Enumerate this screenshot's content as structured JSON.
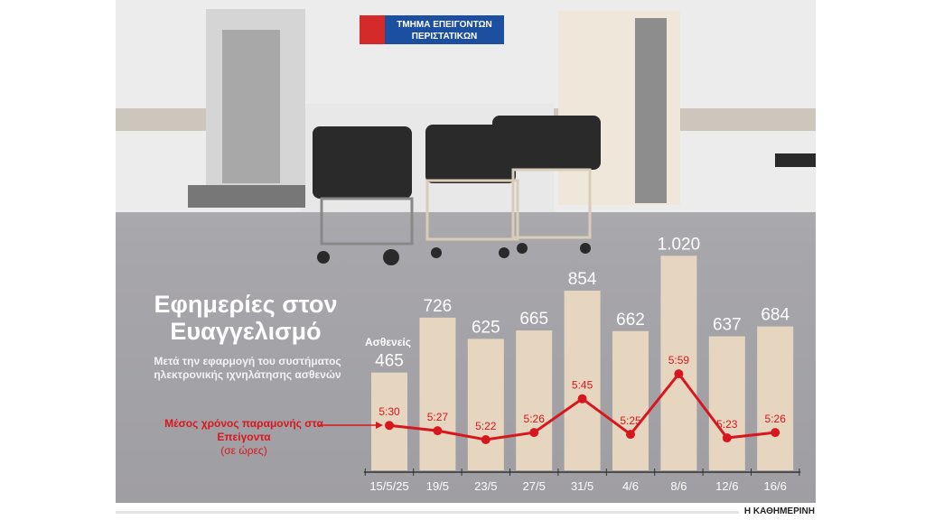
{
  "chart_data": {
    "type": "bar+line",
    "title": "Εφημερίες στον Ευαγγελισμό",
    "subtitle": "Μετά την εφαρμογή του συστήματος ηλεκτρονικής ιχνηλάτησης ασθενών",
    "categories": [
      "15/5/25",
      "19/5",
      "23/5",
      "27/5",
      "31/5",
      "4/6",
      "8/6",
      "12/6",
      "16/6"
    ],
    "bar_series": {
      "name": "Ασθενείς",
      "values": [
        465,
        726,
        625,
        665,
        854,
        662,
        1020,
        637,
        684
      ],
      "labels": [
        "465",
        "726",
        "625",
        "665",
        "854",
        "662",
        "1.020",
        "637",
        "684"
      ],
      "color": "#e6d6c0"
    },
    "line_series": {
      "name": "Μέσος χρόνος παραμονής στα Επείγοντα",
      "unit": "(σε ώρες)",
      "values": [
        "5:30",
        "5:27",
        "5:22",
        "5:26",
        "5:45",
        "5:25",
        "5:59",
        "5:23",
        "5:26"
      ],
      "color": "#d8161e"
    },
    "grid": false
  },
  "sign": "ΤΜΗΜΑ ΕΠΕΙΓΟΝΤΩΝ ΠΕΡΙΣΤΑΤΙΚΩΝ",
  "source": "Η ΚΑΘΗΜΕΡΙΝΗ"
}
